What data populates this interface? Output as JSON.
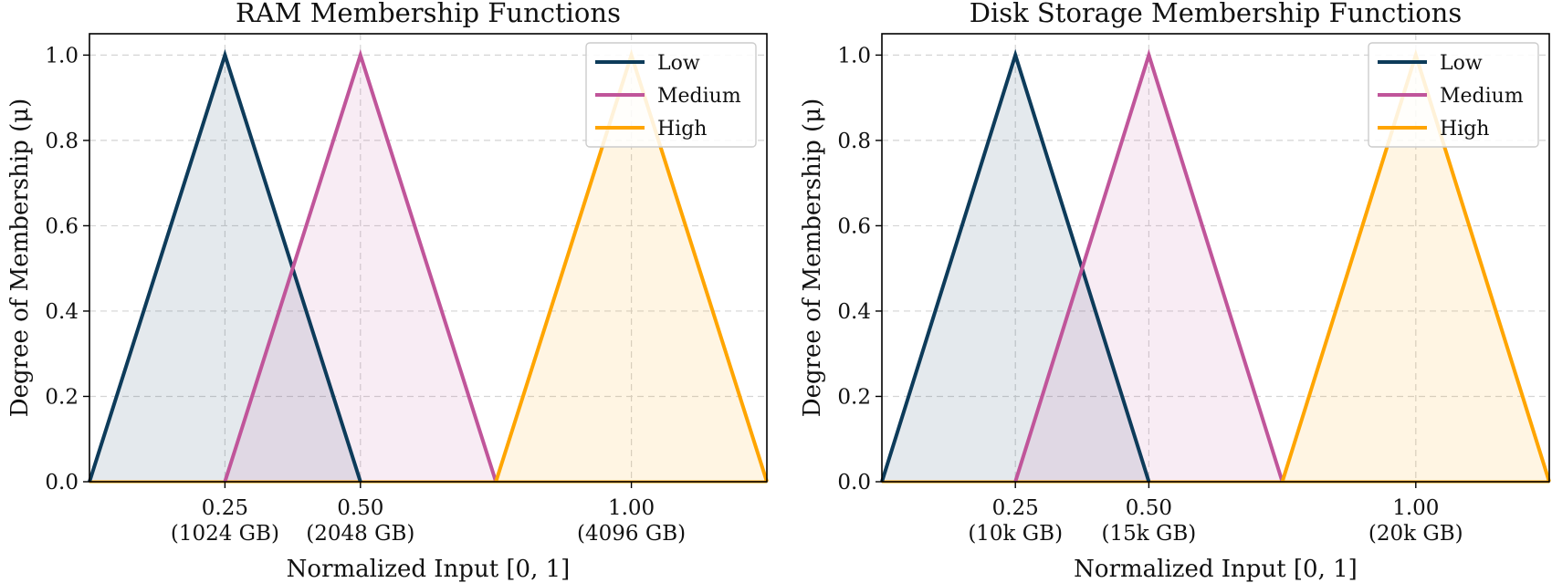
{
  "chart_data": [
    {
      "type": "line",
      "title": "RAM Membership Functions",
      "xlabel": "Normalized Input [0, 1]",
      "ylabel": "Degree of Membership (μ)",
      "xlim": [
        0.0,
        1.25
      ],
      "ylim": [
        0.0,
        1.05
      ],
      "yticks": [
        "0.0",
        "0.2",
        "0.4",
        "0.6",
        "0.8",
        "1.0"
      ],
      "xticks": [
        {
          "value": 0.25,
          "label": "0.25",
          "sublabel": "(1024 GB)"
        },
        {
          "value": 0.5,
          "label": "0.50",
          "sublabel": "(2048 GB)"
        },
        {
          "value": 1.0,
          "label": "1.00",
          "sublabel": "(4096 GB)"
        }
      ],
      "grid": true,
      "legend_position": "top-right",
      "series": [
        {
          "name": "Low",
          "color": "#0d3b5a",
          "x": [
            0.0,
            0.25,
            0.5
          ],
          "y": [
            0,
            1,
            0
          ]
        },
        {
          "name": "Medium",
          "color": "#c0559a",
          "x": [
            0.25,
            0.5,
            0.75
          ],
          "y": [
            0,
            1,
            0
          ]
        },
        {
          "name": "High",
          "color": "#ffa500",
          "x": [
            0.75,
            1.0,
            1.25
          ],
          "y": [
            0,
            1,
            0
          ]
        }
      ]
    },
    {
      "type": "line",
      "title": "Disk Storage Membership Functions",
      "xlabel": "Normalized Input [0, 1]",
      "ylabel": "Degree of Membership (μ)",
      "xlim": [
        0.0,
        1.25
      ],
      "ylim": [
        0.0,
        1.05
      ],
      "yticks": [
        "0.0",
        "0.2",
        "0.4",
        "0.6",
        "0.8",
        "1.0"
      ],
      "xticks": [
        {
          "value": 0.25,
          "label": "0.25",
          "sublabel": "(10k GB)"
        },
        {
          "value": 0.5,
          "label": "0.50",
          "sublabel": "(15k GB)"
        },
        {
          "value": 1.0,
          "label": "1.00",
          "sublabel": "(20k GB)"
        }
      ],
      "grid": true,
      "legend_position": "top-right",
      "series": [
        {
          "name": "Low",
          "color": "#0d3b5a",
          "x": [
            0.0,
            0.25,
            0.5
          ],
          "y": [
            0,
            1,
            0
          ]
        },
        {
          "name": "Medium",
          "color": "#c0559a",
          "x": [
            0.25,
            0.5,
            0.75
          ],
          "y": [
            0,
            1,
            0
          ]
        },
        {
          "name": "High",
          "color": "#ffa500",
          "x": [
            0.75,
            1.0,
            1.25
          ],
          "y": [
            0,
            1,
            0
          ]
        }
      ]
    }
  ]
}
